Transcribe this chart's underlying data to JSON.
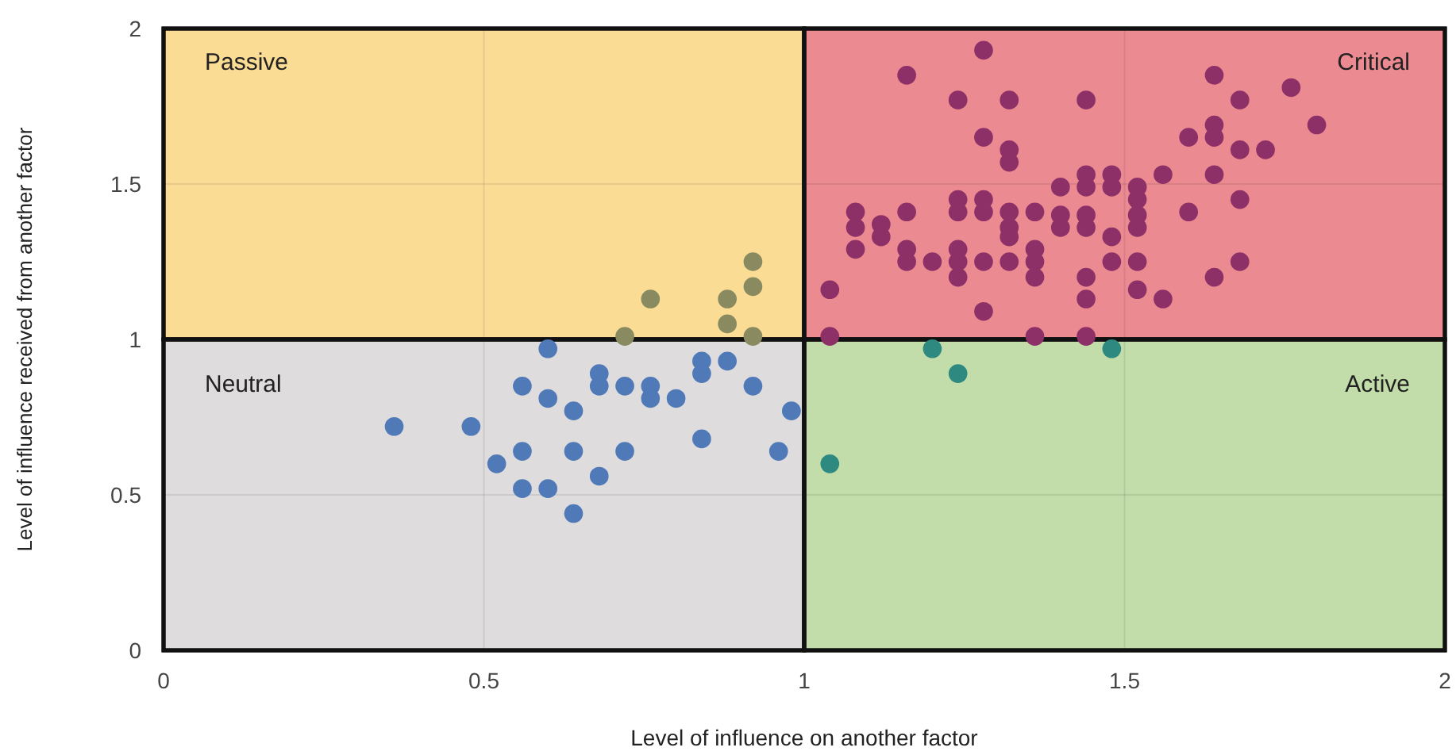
{
  "chart_data": {
    "type": "scatter",
    "xlabel": "Level of influence on another factor",
    "ylabel": "Level of influence received from another factor",
    "xlim": [
      0,
      2
    ],
    "ylim": [
      0,
      2
    ],
    "xticks": [
      0,
      0.5,
      1,
      1.5,
      2
    ],
    "yticks": [
      0,
      0.5,
      1,
      1.5,
      2
    ],
    "grid": true,
    "marker": "circle",
    "bands": [
      {
        "axis": "x",
        "from": 0,
        "to": 1,
        "label": "Passive",
        "color": "#fbdc94"
      },
      {
        "axis": "x",
        "from": 1,
        "to": 2,
        "label": "Critical",
        "color": "#ec8a92"
      },
      {
        "axis": "x",
        "from": 0,
        "to": 1,
        "label": "Neutral",
        "color": "#dfdcde"
      },
      {
        "axis": "x",
        "from": 1,
        "to": 2,
        "label": "Active",
        "color": "#c3ddaa"
      }
    ],
    "series": [
      {
        "color": "#4f79b7",
        "x": [
          0.36,
          0.48,
          0.52,
          0.56,
          0.56,
          0.56,
          0.6,
          0.6,
          0.6,
          0.64,
          0.64,
          0.64,
          0.68,
          0.68,
          0.68,
          0.72,
          0.72,
          0.76,
          0.76,
          0.8,
          0.84,
          0.84,
          0.84,
          0.88,
          0.92,
          0.96,
          0.98
        ],
        "values": [
          0.72,
          0.72,
          0.6,
          0.64,
          0.85,
          0.52,
          0.97,
          0.81,
          0.52,
          0.77,
          0.64,
          0.44,
          0.89,
          0.85,
          0.56,
          0.64,
          0.85,
          0.85,
          0.81,
          0.81,
          0.89,
          0.93,
          0.68,
          0.93,
          0.85,
          0.64,
          0.77
        ]
      },
      {
        "color": "#8a8a60",
        "x": [
          0.76,
          0.88,
          0.88,
          0.92,
          0.92,
          0.72,
          0.92
        ],
        "values": [
          1.13,
          1.13,
          1.05,
          1.25,
          1.17,
          1.01,
          1.01
        ]
      },
      {
        "color": "#2e8a80",
        "x": [
          1.04,
          1.2,
          1.24,
          1.48
        ],
        "values": [
          0.6,
          0.97,
          0.89,
          0.97
        ]
      },
      {
        "color": "#8e3068",
        "x": [
          1.28,
          1.16,
          1.24,
          1.32,
          1.28,
          1.32,
          1.32,
          1.4,
          1.08,
          1.08,
          1.12,
          1.12,
          1.16,
          1.24,
          1.24,
          1.28,
          1.28,
          1.32,
          1.32,
          1.32,
          1.36,
          1.4,
          1.4,
          1.08,
          1.16,
          1.16,
          1.2,
          1.24,
          1.24,
          1.24,
          1.28,
          1.32,
          1.36,
          1.36,
          1.36,
          1.04,
          1.28,
          1.04,
          1.36,
          1.64,
          1.76,
          1.44,
          1.68,
          1.64,
          1.6,
          1.64,
          1.8,
          1.68,
          1.72,
          1.56,
          1.64,
          1.44,
          1.48,
          1.44,
          1.48,
          1.52,
          1.52,
          1.52,
          1.52,
          1.68,
          1.6,
          1.44,
          1.44,
          1.48,
          1.48,
          1.52,
          1.44,
          1.64,
          1.68,
          1.52,
          1.44,
          1.56,
          1.44
        ],
        "values": [
          1.93,
          1.85,
          1.77,
          1.77,
          1.65,
          1.61,
          1.57,
          1.49,
          1.41,
          1.36,
          1.37,
          1.33,
          1.41,
          1.45,
          1.41,
          1.45,
          1.41,
          1.41,
          1.36,
          1.33,
          1.41,
          1.4,
          1.36,
          1.29,
          1.29,
          1.25,
          1.25,
          1.29,
          1.25,
          1.2,
          1.25,
          1.25,
          1.29,
          1.25,
          1.2,
          1.16,
          1.09,
          1.01,
          1.01,
          1.85,
          1.81,
          1.77,
          1.77,
          1.69,
          1.65,
          1.65,
          1.69,
          1.61,
          1.61,
          1.53,
          1.53,
          1.53,
          1.53,
          1.49,
          1.49,
          1.49,
          1.45,
          1.4,
          1.36,
          1.45,
          1.41,
          1.4,
          1.36,
          1.33,
          1.25,
          1.25,
          1.2,
          1.2,
          1.25,
          1.16,
          1.13,
          1.13,
          1.01
        ]
      }
    ]
  }
}
